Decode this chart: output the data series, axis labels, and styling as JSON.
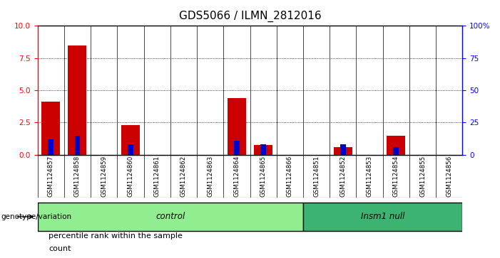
{
  "title": "GDS5066 / ILMN_2812016",
  "samples": [
    "GSM1124857",
    "GSM1124858",
    "GSM1124859",
    "GSM1124860",
    "GSM1124861",
    "GSM1124862",
    "GSM1124863",
    "GSM1124864",
    "GSM1124865",
    "GSM1124866",
    "GSM1124851",
    "GSM1124852",
    "GSM1124853",
    "GSM1124854",
    "GSM1124855",
    "GSM1124856"
  ],
  "counts": [
    4.1,
    8.5,
    0.0,
    2.3,
    0.0,
    0.0,
    0.0,
    4.4,
    0.75,
    0.0,
    0.0,
    0.6,
    0.0,
    1.5,
    0.0,
    0.0
  ],
  "percentile_ranks_pct": [
    12,
    15,
    0,
    8,
    0,
    0,
    0,
    11,
    8,
    0,
    0,
    8,
    0,
    6,
    0,
    0
  ],
  "groups": [
    {
      "label": "control",
      "start": 0,
      "end": 10,
      "color": "#90EE90"
    },
    {
      "label": "Insm1 null",
      "start": 10,
      "end": 16,
      "color": "#3CB371"
    }
  ],
  "ylim_left": [
    0,
    10
  ],
  "ylim_right": [
    0,
    100
  ],
  "yticks_left": [
    0,
    2.5,
    5.0,
    7.5,
    10
  ],
  "yticks_right": [
    0,
    25,
    50,
    75,
    100
  ],
  "ytick_labels_right": [
    "0",
    "25",
    "50",
    "75",
    "100%"
  ],
  "bar_color": "#CC0000",
  "blue_color": "#0000CC",
  "bg_color": "#D0D0D0",
  "legend_items": [
    {
      "label": "count",
      "color": "#CC0000"
    },
    {
      "label": "percentile rank within the sample",
      "color": "#0000CC"
    }
  ],
  "genotype_label": "genotype/variation",
  "title_fontsize": 11,
  "tick_fontsize": 7.5
}
